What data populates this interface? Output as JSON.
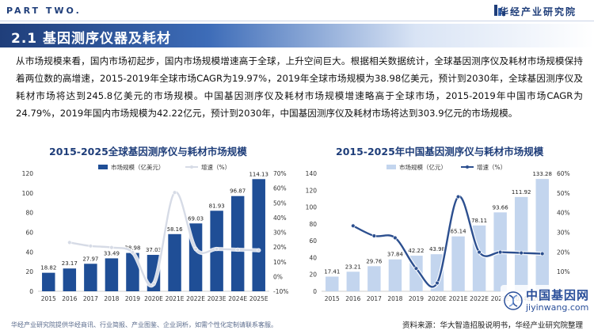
{
  "header": {
    "part_label": "PART TWO.",
    "brand": "华经产业研究院"
  },
  "section_title": "2.1 基因测序仪器及耗材",
  "paragraph": "从市场规模来看，国内市场初起步，国内市场规模增速高于全球，上升空间巨大。根据相关数据统计，全球基因测序仪及耗材市场规模保持着两位数的高增速，2015-2019年全球市场CAGR为19.97%，2019年全球市场规模为38.98亿美元，预计到2030年，全球基因测序仪及耗材市场将达到245.8亿美元的市场规模。中国基因测序仪及耗材市场规模增速略高于全球市场，2015-2019年中国市场CAGR为24.79%，2019年国内市场规模为42.22亿元，预计到2030年，中国基因测序仪及耗材市场将达到303.9亿元的市场规模。",
  "footer": {
    "left": "华经产业研究院提供华经商讯、行业简报、产业图鉴、企业洞析，如需个性化定制请联系客服。",
    "right": "资料来源：华大智造招股说明书，华经产业研究院整理"
  },
  "watermark": {
    "cn": "中国基因网",
    "en": "jiyinwang.com"
  },
  "colors": {
    "brand": "#1f3e7a",
    "bar_global": "#1f4e96",
    "bar_china": "#c3d5ee",
    "line": "#2c4f8f"
  },
  "chart_data": [
    {
      "type": "bar",
      "title": "2015-2025全球基因测序仪与耗材市场规模",
      "categories": [
        "2015",
        "2016",
        "2017",
        "2018",
        "2019",
        "2020E",
        "2021E",
        "2022E",
        "2023E",
        "2024E",
        "2025E"
      ],
      "series": [
        {
          "name": "市场规模（亿美元）",
          "type": "bar",
          "axis": "left",
          "values": [
            18.82,
            23.17,
            27.97,
            33.49,
            38.98,
            37.03,
            58.16,
            69.03,
            81.93,
            96.87,
            114.13
          ]
        },
        {
          "name": "增速（%）",
          "type": "line",
          "axis": "right",
          "values": [
            null,
            23.1,
            20.7,
            19.7,
            16.4,
            -5.0,
            57.0,
            18.7,
            18.7,
            18.2,
            17.8
          ]
        }
      ],
      "y_left": {
        "min": 0,
        "max": 120,
        "ticks": [
          "0",
          "20",
          "40",
          "60",
          "80",
          "100",
          "120"
        ]
      },
      "y_right": {
        "min": -10,
        "max": 70,
        "ticks": [
          "-10%",
          "0%",
          "10%",
          "20%",
          "30%",
          "40%",
          "50%",
          "60%",
          "70%"
        ]
      },
      "legend": "top-right"
    },
    {
      "type": "bar",
      "title": "2015-2025年中国基因测序仪与耗材市场规模",
      "categories": [
        "2015",
        "2016",
        "2017",
        "2018",
        "2019",
        "2020E",
        "2021E",
        "2022E",
        "2023E",
        "2024E",
        "2025E"
      ],
      "series": [
        {
          "name": "市场规模（亿元）",
          "type": "bar",
          "axis": "left",
          "values": [
            17.41,
            23.21,
            29.76,
            37.84,
            42.22,
            43.98,
            65.14,
            78.11,
            93.66,
            111.92,
            133.28
          ]
        },
        {
          "name": "增速（%）",
          "type": "line",
          "axis": "right",
          "values": [
            null,
            33.3,
            28.2,
            27.2,
            11.6,
            4.2,
            48.1,
            19.9,
            19.9,
            19.5,
            19.1
          ]
        }
      ],
      "y_left": {
        "min": 0,
        "max": 140,
        "ticks": [
          "0",
          "20",
          "40",
          "60",
          "80",
          "100",
          "120",
          "140"
        ]
      },
      "y_right": {
        "min": 0,
        "max": 60,
        "ticks": [
          "0%",
          "10%",
          "20%",
          "30%",
          "40%",
          "50%",
          "60%"
        ]
      },
      "legend": "top-right"
    }
  ]
}
